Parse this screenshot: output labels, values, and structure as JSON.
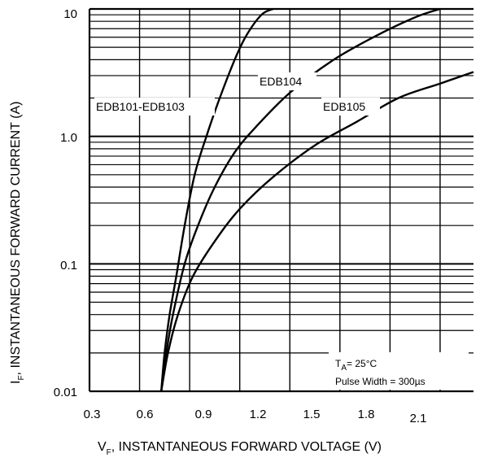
{
  "chart_data": {
    "type": "line",
    "y_scale": "log",
    "grid": true,
    "xlim": [
      0.3,
      2.6
    ],
    "ylim": [
      0.01,
      10
    ],
    "x_ticks": [
      "0.3",
      "0.6",
      "0.9",
      "1.2",
      "1.5",
      "1.8",
      "2.1"
    ],
    "y_ticks": [
      "0.01",
      "0.1",
      "1.0",
      "10"
    ],
    "xlabel": {
      "prefix": "V",
      "sub": "F",
      "text": ", INSTANTANEOUS FORWARD VOLTAGE (V)"
    },
    "ylabel": {
      "prefix": "I",
      "sub": "F",
      "text": ", INSTANTANEOUS FORWARD CURRENT (A)"
    },
    "series": [
      {
        "name": "EDB101-EDB103",
        "x": [
          0.73,
          0.75,
          0.78,
          0.82,
          0.87,
          0.93,
          1.0,
          1.08,
          1.17,
          1.24,
          1.33,
          1.4
        ],
        "y": [
          0.01,
          0.02,
          0.04,
          0.08,
          0.2,
          0.5,
          1.0,
          2.0,
          4.0,
          6.2,
          9.0,
          10.0
        ]
      },
      {
        "name": "EDB104",
        "x": [
          0.73,
          0.76,
          0.8,
          0.87,
          0.95,
          1.05,
          1.17,
          1.3,
          1.5,
          1.75,
          2.0,
          2.25,
          2.4
        ],
        "y": [
          0.01,
          0.02,
          0.04,
          0.1,
          0.2,
          0.4,
          0.75,
          1.2,
          2.2,
          3.9,
          6.0,
          8.6,
          10.0
        ]
      },
      {
        "name": "EDB105",
        "x": [
          0.73,
          0.77,
          0.83,
          0.92,
          1.05,
          1.2,
          1.4,
          1.65,
          1.9,
          2.15,
          2.4,
          2.6
        ],
        "y": [
          0.01,
          0.02,
          0.04,
          0.08,
          0.15,
          0.27,
          0.48,
          0.85,
          1.3,
          2.0,
          2.6,
          3.2
        ]
      }
    ],
    "curve_labels": [
      "EDB101-EDB103",
      "EDB104",
      "EDB105"
    ],
    "annotation": {
      "temp_prefix": "T",
      "temp_sub": "A",
      "temp_value": "= 25°C",
      "pulse": "Pulse Width = 300µs"
    }
  }
}
